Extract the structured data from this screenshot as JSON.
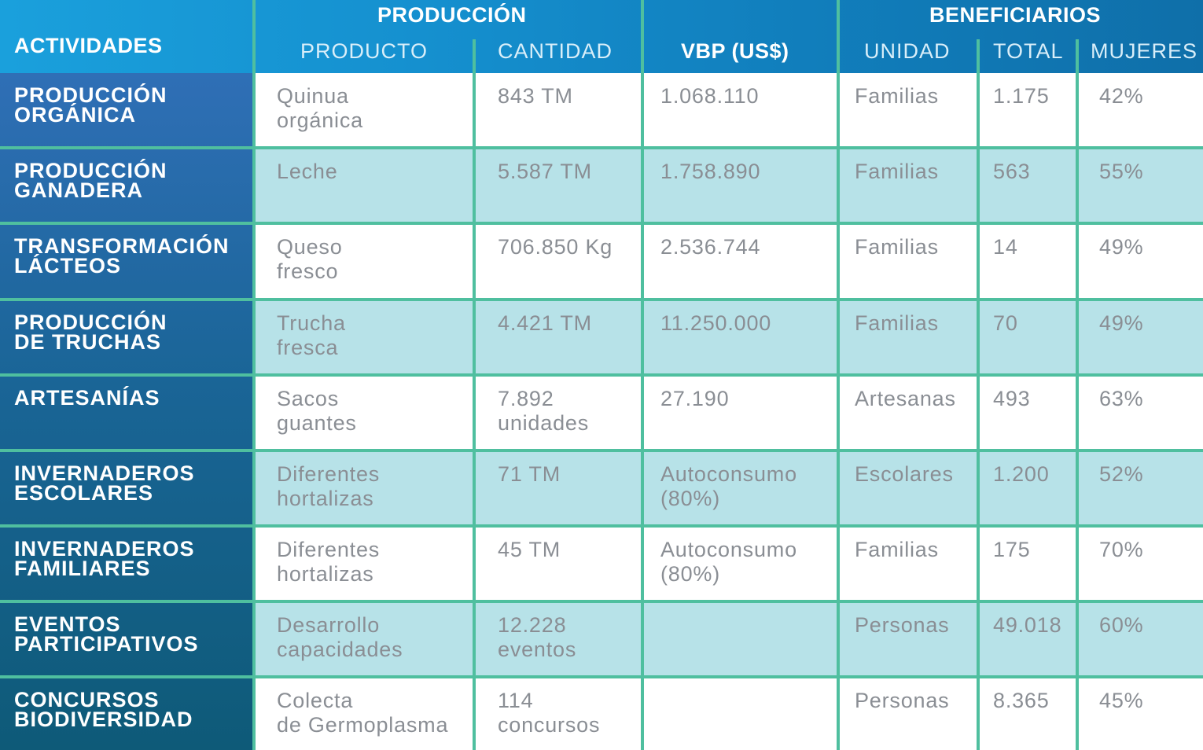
{
  "header": {
    "actividades": "ACTIVIDADES",
    "produccion": "PRODUCCIÓN",
    "producto": "PRODUCTO",
    "cantidad": "CANTIDAD",
    "vbp": "VBP (US$)",
    "beneficiarios": "BENEFICIARIOS",
    "unidad": "UNIDAD",
    "total": "TOTAL",
    "mujeres": "MUJERES"
  },
  "colors": {
    "header_gradient": [
      "#1aa0dc",
      "#0f6fa9"
    ],
    "activity_gradient_top": "#2f6fb6",
    "activity_gradient_bottom": "#0e5a78",
    "grid_line": "#4fbf9f",
    "band_teal": "#b7e2e8",
    "cell_text": "#8a8e94"
  },
  "rows": [
    {
      "actividad": "PRODUCCIÓN\nORGÁNICA",
      "producto": "Quinua\norgánica",
      "cantidad": "843 TM",
      "vbp": "1.068.110",
      "unidad": "Familias",
      "total": "1.175",
      "mujeres": "42%"
    },
    {
      "actividad": "PRODUCCIÓN\nGANADERA",
      "producto": "Leche",
      "cantidad": "5.587 TM",
      "vbp": "1.758.890",
      "unidad": "Familias",
      "total": "563",
      "mujeres": "55%"
    },
    {
      "actividad": "TRANSFORMACIÓN\nLÁCTEOS",
      "producto": "Queso\nfresco",
      "cantidad": "706.850 Kg",
      "vbp": "2.536.744",
      "unidad": "Familias",
      "total": "14",
      "mujeres": "49%"
    },
    {
      "actividad": "PRODUCCIÓN\nDE TRUCHAS",
      "producto": "Trucha\nfresca",
      "cantidad": "4.421 TM",
      "vbp": "11.250.000",
      "unidad": "Familias",
      "total": "70",
      "mujeres": "49%"
    },
    {
      "actividad": "ARTESANÍAS",
      "producto": "Sacos\nguantes",
      "cantidad": "7.892\nunidades",
      "vbp": "27.190",
      "unidad": "Artesanas",
      "total": "493",
      "mujeres": "63%"
    },
    {
      "actividad": "INVERNADEROS\nESCOLARES",
      "producto": "Diferentes\nhortalizas",
      "cantidad": "71 TM",
      "vbp": "Autoconsumo\n(80%)",
      "unidad": "Escolares",
      "total": "1.200",
      "mujeres": "52%"
    },
    {
      "actividad": "INVERNADEROS\nFAMILIARES",
      "producto": "Diferentes\nhortalizas",
      "cantidad": "45 TM",
      "vbp": "Autoconsumo\n(80%)",
      "unidad": "Familias",
      "total": "175",
      "mujeres": "70%"
    },
    {
      "actividad": "EVENTOS\nPARTICIPATIVOS",
      "producto": "Desarrollo\ncapacidades",
      "cantidad": "12.228\neventos",
      "vbp": "",
      "unidad": "Personas",
      "total": "49.018",
      "mujeres": "60%"
    },
    {
      "actividad": "CONCURSOS\nBIODIVERSIDAD",
      "producto": "Colecta\nde Germoplasma",
      "cantidad": "114\nconcursos",
      "vbp": "",
      "unidad": "Personas",
      "total": "8.365",
      "mujeres": "45%"
    }
  ]
}
